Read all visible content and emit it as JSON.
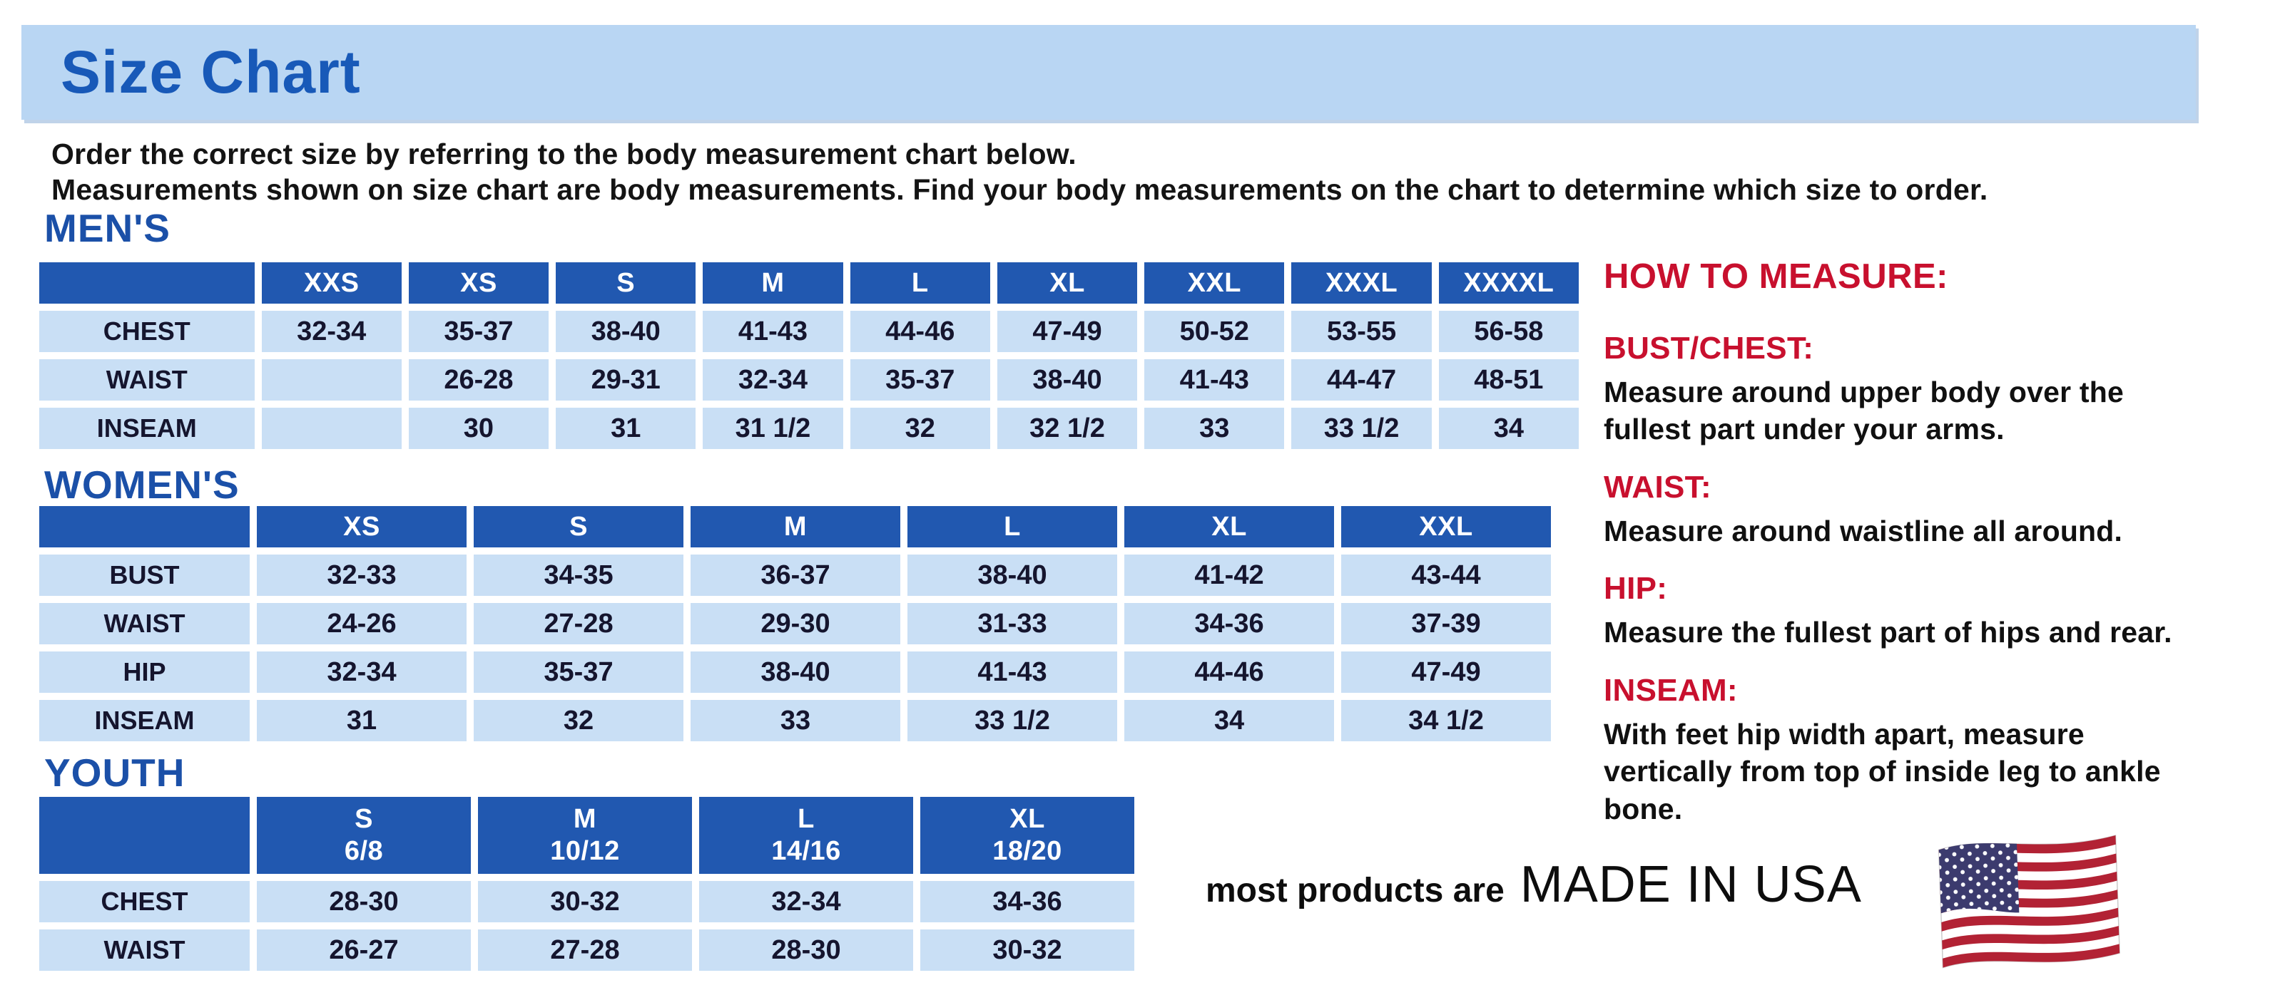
{
  "page": {
    "title": "Size Chart",
    "intro_line1": "Order the correct size by referring to the body measurement chart below.",
    "intro_line2": "Measurements shown on size chart are body measurements.  Find your body measurements on the chart to determine which size to order."
  },
  "tables": {
    "mens": {
      "section_label": "MEN'S",
      "headers": [
        "XXS",
        "XS",
        "S",
        "M",
        "L",
        "XL",
        "XXL",
        "XXXL",
        "XXXXL"
      ],
      "rows": [
        {
          "label": "CHEST",
          "cells": [
            "32-34",
            "35-37",
            "38-40",
            "41-43",
            "44-46",
            "47-49",
            "50-52",
            "53-55",
            "56-58"
          ]
        },
        {
          "label": "WAIST",
          "cells": [
            "",
            "26-28",
            "29-31",
            "32-34",
            "35-37",
            "38-40",
            "41-43",
            "44-47",
            "48-51"
          ]
        },
        {
          "label": "INSEAM",
          "cells": [
            "",
            "30",
            "31",
            "31 1/2",
            "32",
            "32 1/2",
            "33",
            "33 1/2",
            "34"
          ]
        }
      ]
    },
    "womens": {
      "section_label": "WOMEN'S",
      "headers": [
        "XS",
        "S",
        "M",
        "L",
        "XL",
        "XXL"
      ],
      "rows": [
        {
          "label": "BUST",
          "cells": [
            "32-33",
            "34-35",
            "36-37",
            "38-40",
            "41-42",
            "43-44"
          ]
        },
        {
          "label": "WAIST",
          "cells": [
            "24-26",
            "27-28",
            "29-30",
            "31-33",
            "34-36",
            "37-39"
          ]
        },
        {
          "label": "HIP",
          "cells": [
            "32-34",
            "35-37",
            "38-40",
            "41-43",
            "44-46",
            "47-49"
          ]
        },
        {
          "label": "INSEAM",
          "cells": [
            "31",
            "32",
            "33",
            "33 1/2",
            "34",
            "34 1/2"
          ]
        }
      ]
    },
    "youth": {
      "section_label": "YOUTH",
      "headers": [
        "S\n6/8",
        "M\n10/12",
        "L\n14/16",
        "XL\n18/20"
      ],
      "rows": [
        {
          "label": "CHEST",
          "cells": [
            "28-30",
            "30-32",
            "32-34",
            "34-36"
          ]
        },
        {
          "label": "WAIST",
          "cells": [
            "26-27",
            "27-28",
            "28-30",
            "30-32"
          ]
        }
      ]
    }
  },
  "how_to_measure": {
    "title": "HOW TO MEASURE:",
    "sections": [
      {
        "label": "BUST/CHEST:",
        "text": "Measure around upper body over the fullest part under your arms."
      },
      {
        "label": "WAIST:",
        "text": "Measure around waistline all around."
      },
      {
        "label": "HIP:",
        "text": "Measure the fullest part of hips and rear."
      },
      {
        "label": "INSEAM:",
        "text": "With feet hip width apart, measure vertically from top of inside leg to ankle bone."
      }
    ]
  },
  "footer": {
    "prefix": "most products are",
    "made_in": "MADE IN USA",
    "flag": "usa-flag-icon"
  },
  "colors": {
    "banner-bg": "#b9d6f3",
    "title-blue": "#1859b8",
    "heading-blue": "#1b50a8",
    "header-blue": "#2158b0",
    "cell-blue": "#c9dff5",
    "accent-red": "#c8102e",
    "text-dark": "#15152e",
    "flag-red": "#b22234",
    "flag-blue": "#3c3b6e"
  }
}
